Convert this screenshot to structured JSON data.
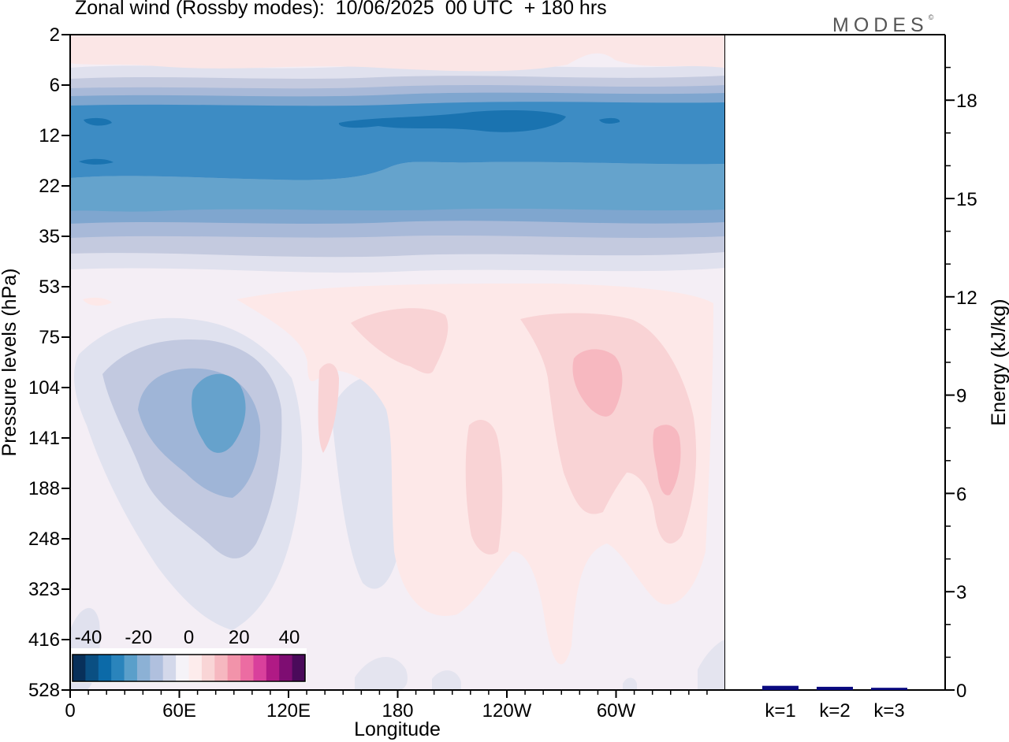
{
  "title": "Zonal wind (Rossby modes):  10/06/2025  00 UTC  + 180 hrs",
  "logo": "MODES",
  "logo_mark": "©",
  "chart_data": [
    {
      "type": "heatmap",
      "title": "Zonal wind (Rossby modes):  10/06/2025  00 UTC  + 180 hrs",
      "xlabel": "Longitude",
      "ylabel": "Pressure levels (hPa)",
      "x_tick_labels": [
        "0",
        "60E",
        "120E",
        "180",
        "120W",
        "60W"
      ],
      "x_ticks_deg": [
        0,
        60,
        120,
        180,
        240,
        300
      ],
      "xlim_deg": [
        0,
        360
      ],
      "y_tick_labels": [
        "2",
        "6",
        "12",
        "22",
        "35",
        "53",
        "75",
        "104",
        "141",
        "188",
        "248",
        "323",
        "416",
        "528"
      ],
      "colorbar": {
        "tick_labels": [
          "-40",
          "-20",
          "0",
          "20",
          "40"
        ],
        "colors": [
          "#08305a",
          "#0a4f82",
          "#0c6aa8",
          "#2a84bc",
          "#5a9fca",
          "#8cb1d5",
          "#b0c0de",
          "#d3d8ea",
          "#f5f3f8",
          "#fdecec",
          "#f9d5d6",
          "#f6b8c0",
          "#f293aa",
          "#ec6ca2",
          "#d9409c",
          "#b01a85",
          "#7e0d72",
          "#4a0a5a"
        ]
      },
      "fields": [
        {
          "name": "strato_1",
          "value": -4,
          "color": "#e0e1ee"
        },
        {
          "name": "strato_2",
          "value": -8,
          "color": "#c4cadf"
        },
        {
          "name": "strato_3",
          "value": -12,
          "color": "#a8b9d8"
        },
        {
          "name": "strato_4",
          "value": -16,
          "color": "#7fa6cf"
        },
        {
          "name": "strato_core",
          "value": -22,
          "color": "#3d8cc4"
        },
        {
          "name": "strato_max",
          "value": -28,
          "color": "#1a73b0"
        },
        {
          "name": "lower_strato",
          "value": -16,
          "color": "#65a3cc"
        },
        {
          "name": "upper_pos",
          "value": 2,
          "color": "#fbe6e6"
        },
        {
          "name": "trop_neg_1",
          "value": -4,
          "color": "#e0e2ef"
        },
        {
          "name": "trop_neg_2",
          "value": -8,
          "color": "#c2c9e0"
        },
        {
          "name": "trop_neg_3",
          "value": -12,
          "color": "#9fb5d7"
        },
        {
          "name": "trop_neg_4",
          "value": -16,
          "color": "#66a2cc"
        },
        {
          "name": "trop_pos_1",
          "value": 2,
          "color": "#fde8e8"
        },
        {
          "name": "trop_pos_2",
          "value": 6,
          "color": "#f9d3d5"
        },
        {
          "name": "trop_pos_3",
          "value": 10,
          "color": "#f7b8c0"
        }
      ]
    },
    {
      "type": "bar",
      "categories": [
        "k=1",
        "k=2",
        "k=3"
      ],
      "values": [
        0.08,
        0.05,
        0.02
      ],
      "ylabel": "Energy (kJ/kg)",
      "ylim": [
        0,
        20
      ],
      "y_ticks": [
        0,
        3,
        6,
        9,
        12,
        15,
        18
      ],
      "bar_color": "#0a0a80"
    }
  ]
}
